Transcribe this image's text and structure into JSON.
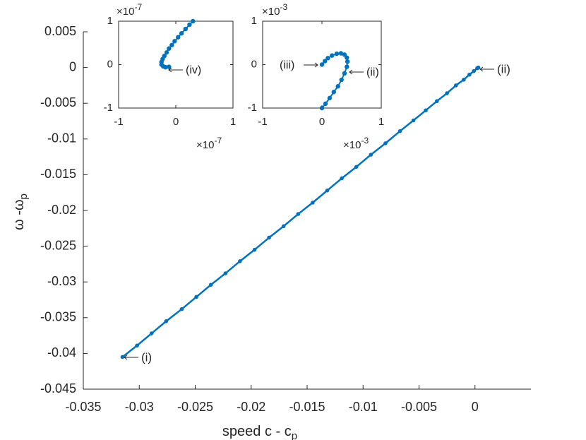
{
  "chart_data": [
    {
      "type": "line",
      "color": "#0072bd",
      "xlabel": {
        "text": "speed c - c",
        "subscript": "p"
      },
      "ylabel": {
        "text": "ω -ω",
        "subscript": "p"
      },
      "xlim": [
        -0.035,
        0.005
      ],
      "xticks": [
        -0.035,
        -0.03,
        -0.025,
        -0.02,
        -0.015,
        -0.01,
        -0.005,
        0
      ],
      "ylim": [
        -0.045,
        0.005
      ],
      "yticks": [
        0.005,
        0,
        -0.005,
        -0.01,
        -0.015,
        -0.02,
        -0.025,
        -0.03,
        -0.035,
        -0.04,
        -0.045
      ],
      "x": [
        -0.0315,
        -0.0302,
        -0.0289,
        -0.0276,
        -0.0262,
        -0.0249,
        -0.0236,
        -0.0223,
        -0.021,
        -0.0197,
        -0.0184,
        -0.0171,
        -0.0158,
        -0.0145,
        -0.0132,
        -0.0119,
        -0.0106,
        -0.0093,
        -0.008,
        -0.0067,
        -0.0055,
        -0.0044,
        -0.0034,
        -0.0025,
        -0.0017,
        -0.001,
        -0.0005,
        -0.0001,
        0.0002,
        0.0003
      ],
      "values": [
        -0.0405,
        -0.0389,
        -0.0372,
        -0.0355,
        -0.0338,
        -0.0321,
        -0.0304,
        -0.0288,
        -0.0271,
        -0.0255,
        -0.0238,
        -0.0222,
        -0.0205,
        -0.0189,
        -0.0172,
        -0.0155,
        -0.0139,
        -0.0122,
        -0.0106,
        -0.0089,
        -0.0074,
        -0.006,
        -0.0047,
        -0.0036,
        -0.0025,
        -0.0017,
        -0.001,
        -0.0005,
        -0.0001,
        0
      ],
      "annotations": [
        "(i)",
        "(ii)"
      ]
    },
    {
      "type": "line",
      "color": "#0072bd",
      "x_multiplier": {
        "base": "×10",
        "exponent": "-7"
      },
      "y_multiplier": {
        "base": "×10",
        "exponent": "-7"
      },
      "xlim": [
        -1,
        1
      ],
      "xticks": [
        -1,
        0,
        1
      ],
      "ylim": [
        -1,
        1
      ],
      "yticks": [
        -1,
        0,
        1
      ],
      "x": [
        -0.12,
        -0.18,
        -0.22,
        -0.25,
        -0.25,
        -0.23,
        -0.2,
        -0.16,
        -0.12,
        -0.07,
        -0.02,
        0.04,
        0.1,
        0.17,
        0.24,
        0.3
      ],
      "values": [
        -0.05,
        -0.06,
        -0.04,
        0,
        0.06,
        0.13,
        0.2,
        0.28,
        0.37,
        0.45,
        0.54,
        0.63,
        0.72,
        0.82,
        0.92,
        1.0
      ],
      "annotations": [
        "(iv)"
      ]
    },
    {
      "type": "line",
      "color": "#0072bd",
      "x_multiplier": {
        "base": "×10",
        "exponent": "-3"
      },
      "y_multiplier": {
        "base": "×10",
        "exponent": "-3"
      },
      "xlim": [
        -1,
        1
      ],
      "xticks": [
        -1,
        0,
        1
      ],
      "ylim": [
        -1,
        1
      ],
      "yticks": [
        -1,
        0,
        1
      ],
      "x": [
        0,
        0.05,
        0.1,
        0.17,
        0.25,
        0.32,
        0.38,
        0.42,
        0.43,
        0.42,
        0.38,
        0.33,
        0.27,
        0.2,
        0.13,
        0.06,
        0
      ],
      "values": [
        0,
        0.08,
        0.15,
        0.21,
        0.25,
        0.26,
        0.23,
        0.16,
        0.07,
        -0.05,
        -0.2,
        -0.35,
        -0.5,
        -0.63,
        -0.77,
        -0.9,
        -1.0
      ],
      "annotations": [
        "(iii)",
        "(ii)"
      ]
    }
  ]
}
